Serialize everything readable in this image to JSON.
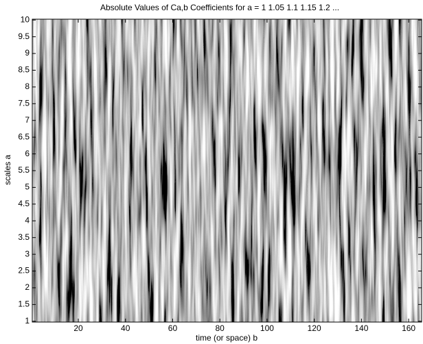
{
  "chart_data": {
    "type": "image",
    "title": "Absolute Values of Ca,b Coefficients for a =  1 1.05 1.1 1.15 1.2 ...",
    "xlabel": "time (or space) b",
    "ylabel": "scales a",
    "xlim": [
      0.5,
      165.5
    ],
    "ylim": [
      0.975,
      10.025
    ],
    "xticks": [
      20,
      40,
      60,
      80,
      100,
      120,
      140,
      160
    ],
    "yticks": [
      1,
      1.5,
      2,
      2.5,
      3,
      3.5,
      4,
      4.5,
      5,
      5.5,
      6,
      6.5,
      7,
      7.5,
      8,
      8.5,
      9,
      9.5,
      10
    ]
  }
}
